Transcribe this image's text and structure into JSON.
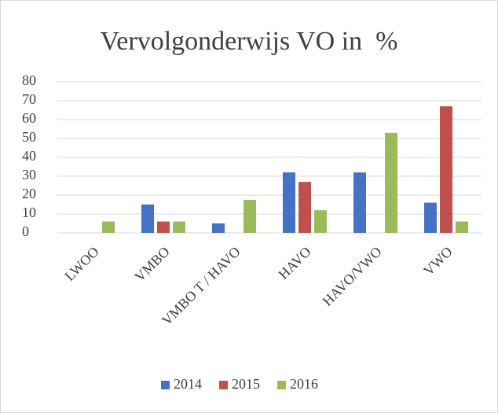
{
  "chart_data": {
    "type": "bar",
    "title": "Vervolgonderwijs VO in  %",
    "categories": [
      "LWOO",
      "VMBO",
      "VMBO T / HAVO",
      "HAVO",
      "HAVO/VWO",
      "VWO"
    ],
    "series": [
      {
        "name": "2014",
        "color": "#4472c4",
        "values": [
          0,
          15,
          5,
          32,
          32,
          16
        ]
      },
      {
        "name": "2015",
        "color": "#c0504d",
        "values": [
          0,
          6,
          0,
          27,
          0,
          67
        ]
      },
      {
        "name": "2016",
        "color": "#9bbb59",
        "values": [
          6,
          6,
          17.5,
          12,
          53,
          6
        ]
      }
    ],
    "ylim": [
      0,
      80
    ],
    "yticks": [
      0,
      10,
      20,
      30,
      40,
      50,
      60,
      70,
      80
    ],
    "grid": true,
    "legend": "bottom"
  }
}
